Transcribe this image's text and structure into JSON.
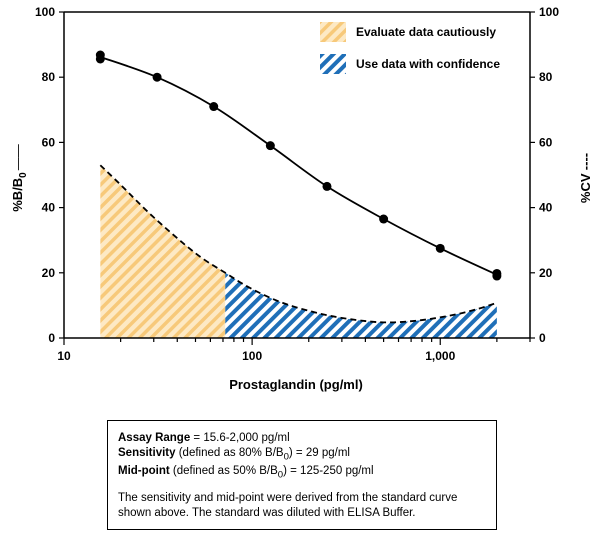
{
  "chart_data": {
    "type": "line",
    "x_scale": "log",
    "xlim": [
      10,
      3000
    ],
    "ylim": [
      0,
      100
    ],
    "y2lim": [
      0,
      100
    ],
    "x_ticks": [
      10,
      100,
      1000
    ],
    "x_tick_labels": [
      "10",
      "100",
      "1,000"
    ],
    "y_ticks": [
      0,
      20,
      40,
      60,
      80,
      100
    ],
    "y_tick_labels": [
      "0",
      "20",
      "40",
      "60",
      "80",
      "100"
    ],
    "xlabel": "Prostaglandin (pg/ml)",
    "ylabel_main": "%B/B",
    "ylabel_sub": "0",
    "ylabel_marker": "——",
    "y2label": "%CV",
    "y2label_marker": "----",
    "series": [
      {
        "role": "standard_curve",
        "axis": "left",
        "style": "solid",
        "points": [
          {
            "x": 15.6,
            "y": 86.8
          },
          {
            "x": 15.6,
            "y": 85.6
          },
          {
            "x": 31.25,
            "y": 80.0
          },
          {
            "x": 62.5,
            "y": 71.0
          },
          {
            "x": 125,
            "y": 59.0
          },
          {
            "x": 250,
            "y": 46.5
          },
          {
            "x": 500,
            "y": 36.5
          },
          {
            "x": 1000,
            "y": 27.5
          },
          {
            "x": 2000,
            "y": 19.8
          },
          {
            "x": 2000,
            "y": 19.0
          }
        ]
      },
      {
        "role": "cv_curve",
        "axis": "right",
        "style": "dashed",
        "points": [
          {
            "x": 15.6,
            "y": 53
          },
          {
            "x": 20,
            "y": 47
          },
          {
            "x": 30,
            "y": 37
          },
          {
            "x": 50,
            "y": 26
          },
          {
            "x": 72,
            "y": 20
          },
          {
            "x": 100,
            "y": 15
          },
          {
            "x": 150,
            "y": 10.5
          },
          {
            "x": 250,
            "y": 7
          },
          {
            "x": 400,
            "y": 5.2
          },
          {
            "x": 550,
            "y": 4.8
          },
          {
            "x": 800,
            "y": 5.5
          },
          {
            "x": 1200,
            "y": 7.2
          },
          {
            "x": 1600,
            "y": 9.0
          },
          {
            "x": 2000,
            "y": 10.8
          }
        ]
      }
    ],
    "regions": [
      {
        "label": "Evaluate data cautiously",
        "x_from": 15.6,
        "x_to": 72,
        "color": "#f5a623",
        "bg": "#fde9c4"
      },
      {
        "label": "Use data with confidence",
        "x_from": 72,
        "x_to": 2000,
        "color": "#1f6fb8",
        "bg": "#ffffff"
      }
    ],
    "legend_position": "top-right",
    "grid": false
  },
  "info": {
    "range_label": "Assay Range",
    "range_value": " = 15.6-2,000 pg/ml",
    "sensitivity_label": "Sensitivity",
    "sensitivity_pre": " (defined as 80% B/B",
    "sensitivity_sub": "0",
    "sensitivity_post": ") = 29 pg/ml",
    "midpoint_label": "Mid-point",
    "midpoint_pre": " (defined as 50% B/B",
    "midpoint_sub": "0",
    "midpoint_post": ") = 125-250 pg/ml",
    "note": "The sensitivity and mid-point were derived from the standard curve shown above. The standard was diluted with ELISA Buffer."
  }
}
